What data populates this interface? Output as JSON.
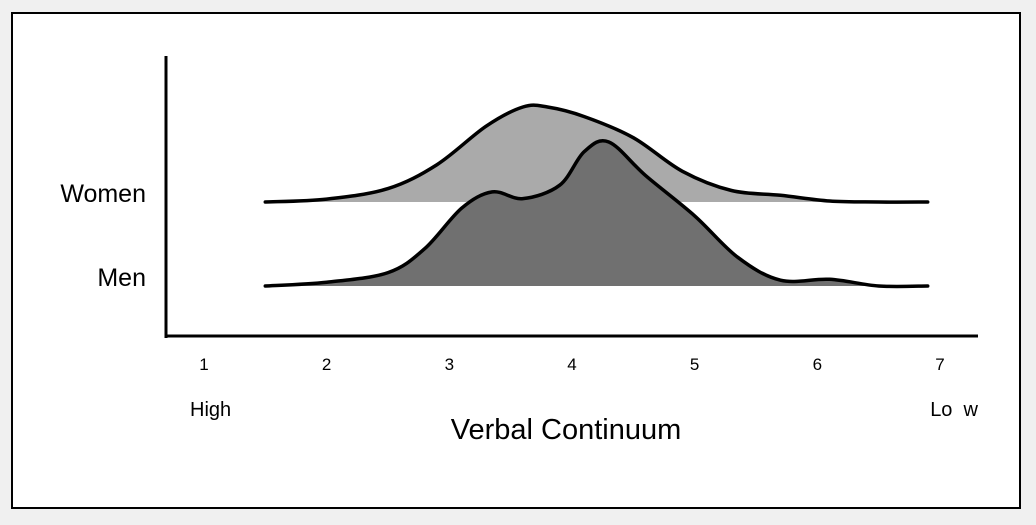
{
  "chart_data": {
    "type": "area",
    "title": "",
    "xlabel": "Verbal Continuum",
    "ylabel": "",
    "xlim": [
      1,
      7
    ],
    "x_ticks": [
      1,
      2,
      3,
      4,
      5,
      6,
      7
    ],
    "axis_end_labels": {
      "low_end": "High",
      "high_end": "Lo  w"
    },
    "grid": false,
    "legend": "none",
    "series": [
      {
        "name": "Women",
        "color": "#aaaaaa",
        "x": [
          1.5,
          2.0,
          2.5,
          2.9,
          3.3,
          3.6,
          3.8,
          4.1,
          4.5,
          4.9,
          5.3,
          5.7,
          6.1,
          6.5,
          6.9
        ],
        "y": [
          0.0,
          0.03,
          0.14,
          0.39,
          0.79,
          0.99,
          0.99,
          0.89,
          0.67,
          0.32,
          0.12,
          0.07,
          0.01,
          0.0,
          0.0
        ]
      },
      {
        "name": "Men",
        "color": "#707070",
        "x": [
          1.5,
          2.0,
          2.5,
          2.8,
          3.1,
          3.35,
          3.6,
          3.9,
          4.1,
          4.3,
          4.6,
          5.0,
          5.35,
          5.7,
          6.1,
          6.5,
          6.9
        ],
        "y": [
          0.0,
          0.04,
          0.14,
          0.39,
          0.81,
          0.98,
          0.91,
          1.05,
          1.4,
          1.5,
          1.15,
          0.73,
          0.3,
          0.06,
          0.07,
          0.0,
          0.0
        ]
      }
    ]
  }
}
